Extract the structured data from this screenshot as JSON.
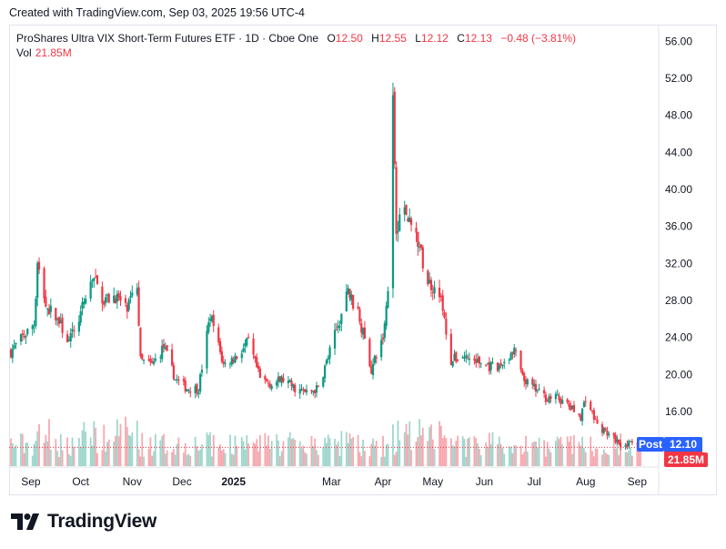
{
  "caption": "Created with TradingView.com, Sep 03, 2025 19:56 UTC-4",
  "legend": {
    "symbol": "ProShares Ultra VIX Short-Term Futures ETF · 1D · Cboe One",
    "o_label": "O",
    "o_value": "12.50",
    "h_label": "H",
    "h_value": "12.55",
    "l_label": "L",
    "l_value": "12.12",
    "c_label": "C",
    "c_value": "12.13",
    "change": "−0.48 (−3.81%)",
    "vol_label": "Vol",
    "vol_value": "21.85M"
  },
  "price_tags": {
    "last": "12.13",
    "post_label": "Post",
    "post": "12.10",
    "volume": "21.85M"
  },
  "brand": {
    "name": "TradingView"
  },
  "colors": {
    "up": "#089981",
    "down": "#f23645",
    "up_vol": "#9fd7cd",
    "down_vol": "#f7a9b0",
    "post": "#2962ff"
  },
  "chart_data": {
    "type": "candlestick",
    "title": "ProShares Ultra VIX Short-Term Futures ETF · 1D · Cboe One",
    "y_ticks": [
      "56.00",
      "52.00",
      "48.00",
      "44.00",
      "40.00",
      "36.00",
      "32.00",
      "28.00",
      "24.00",
      "20.00",
      "16.00"
    ],
    "ylim": [
      10.3,
      57.5
    ],
    "x_ticks": [
      "Sep",
      "Oct",
      "Nov",
      "Dec",
      "2025",
      "Mar",
      "Apr",
      "May",
      "Jun",
      "Jul",
      "Aug",
      "Sep"
    ],
    "x_tick_dates": [
      "2024-09-01",
      "2024-10-01",
      "2024-11-01",
      "2024-12-01",
      "2025-01-01",
      "2025-03-01",
      "2025-04-01",
      "2025-05-01",
      "2025-06-01",
      "2025-07-01",
      "2025-08-01",
      "2025-09-01"
    ],
    "date_range": [
      "2024-08-20",
      "2025-09-03"
    ],
    "last_close": 12.13,
    "post_price": 12.1,
    "last_volume_millions": 21.85,
    "path": [
      [
        "2024-08-20",
        22.5
      ],
      [
        "2024-08-27",
        24.0
      ],
      [
        "2024-09-03",
        25.5
      ],
      [
        "2024-09-05",
        32.0
      ],
      [
        "2024-09-10",
        27.5
      ],
      [
        "2024-09-17",
        26.0
      ],
      [
        "2024-09-24",
        23.5
      ],
      [
        "2024-10-01",
        26.5
      ],
      [
        "2024-10-08",
        30.5
      ],
      [
        "2024-10-15",
        28.0
      ],
      [
        "2024-10-22",
        28.5
      ],
      [
        "2024-10-29",
        27.0
      ],
      [
        "2024-11-04",
        29.5
      ],
      [
        "2024-11-06",
        21.5
      ],
      [
        "2024-11-13",
        21.0
      ],
      [
        "2024-11-20",
        23.0
      ],
      [
        "2024-11-27",
        19.5
      ],
      [
        "2024-12-04",
        18.5
      ],
      [
        "2024-12-11",
        18.5
      ],
      [
        "2024-12-18",
        26.5
      ],
      [
        "2024-12-26",
        21.0
      ],
      [
        "2025-01-03",
        22.0
      ],
      [
        "2025-01-10",
        23.5
      ],
      [
        "2025-01-17",
        19.5
      ],
      [
        "2025-01-24",
        19.0
      ],
      [
        "2025-01-31",
        19.5
      ],
      [
        "2025-02-07",
        18.5
      ],
      [
        "2025-02-14",
        18.0
      ],
      [
        "2025-02-21",
        18.5
      ],
      [
        "2025-02-28",
        22.5
      ],
      [
        "2025-03-07",
        26.5
      ],
      [
        "2025-03-11",
        29.0
      ],
      [
        "2025-03-18",
        26.0
      ],
      [
        "2025-03-25",
        20.5
      ],
      [
        "2025-04-01",
        24.0
      ],
      [
        "2025-04-04",
        29.0
      ],
      [
        "2025-04-07",
        50.0
      ],
      [
        "2025-04-09",
        36.0
      ],
      [
        "2025-04-14",
        38.0
      ],
      [
        "2025-04-21",
        35.0
      ],
      [
        "2025-04-28",
        30.0
      ],
      [
        "2025-05-05",
        29.0
      ],
      [
        "2025-05-12",
        21.5
      ],
      [
        "2025-05-19",
        22.0
      ],
      [
        "2025-05-26",
        21.5
      ],
      [
        "2025-06-02",
        21.0
      ],
      [
        "2025-06-09",
        20.5
      ],
      [
        "2025-06-13",
        21.5
      ],
      [
        "2025-06-20",
        22.5
      ],
      [
        "2025-06-24",
        19.5
      ],
      [
        "2025-07-01",
        18.5
      ],
      [
        "2025-07-08",
        17.5
      ],
      [
        "2025-07-15",
        17.5
      ],
      [
        "2025-07-22",
        16.5
      ],
      [
        "2025-07-29",
        15.5
      ],
      [
        "2025-08-01",
        17.5
      ],
      [
        "2025-08-08",
        14.5
      ],
      [
        "2025-08-15",
        13.5
      ],
      [
        "2025-08-22",
        12.5
      ],
      [
        "2025-08-29",
        12.5
      ],
      [
        "2025-09-03",
        12.13
      ]
    ]
  }
}
